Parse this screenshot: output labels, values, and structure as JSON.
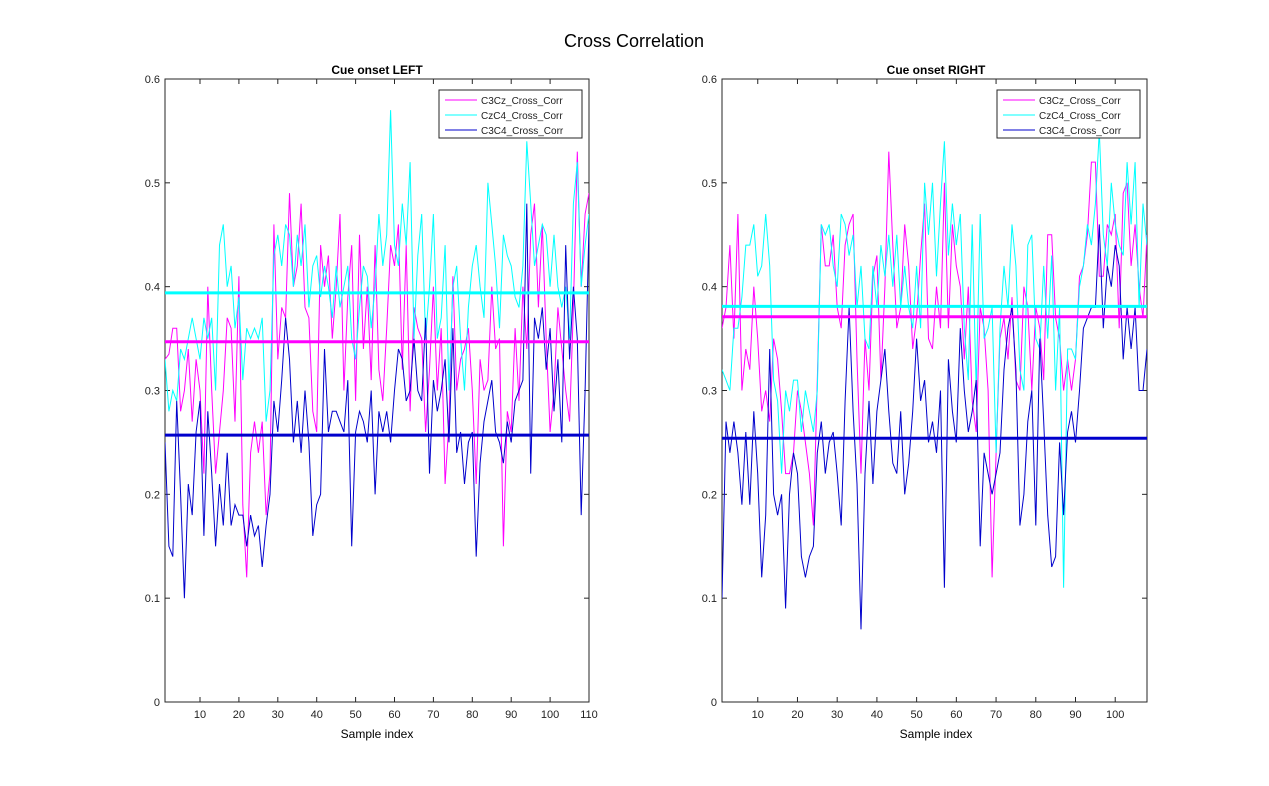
{
  "figure": {
    "suptitle": "Cross Correlation"
  },
  "chart_data": [
    {
      "type": "line",
      "title": "Cue onset LEFT",
      "xlabel": "Sample index",
      "ylabel": "",
      "xlim": [
        1,
        110
      ],
      "ylim": [
        0,
        0.6
      ],
      "xticks": [
        10,
        20,
        30,
        40,
        50,
        60,
        70,
        80,
        90,
        100,
        110
      ],
      "yticks": [
        0,
        0.1,
        0.2,
        0.3,
        0.4,
        0.5,
        0.6
      ],
      "grid": false,
      "legend": "top-right",
      "series": [
        {
          "name": "C3Cz_Cross_Corr",
          "color": "#ff00ff",
          "mean": 0.347,
          "values": [
            0.33,
            0.335,
            0.36,
            0.36,
            0.28,
            0.3,
            0.34,
            0.27,
            0.33,
            0.3,
            0.22,
            0.4,
            0.3,
            0.22,
            0.26,
            0.3,
            0.37,
            0.36,
            0.27,
            0.41,
            0.19,
            0.12,
            0.24,
            0.27,
            0.24,
            0.27,
            0.18,
            0.22,
            0.46,
            0.33,
            0.38,
            0.37,
            0.49,
            0.4,
            0.42,
            0.48,
            0.38,
            0.37,
            0.28,
            0.26,
            0.44,
            0.4,
            0.43,
            0.35,
            0.4,
            0.47,
            0.3,
            0.39,
            0.44,
            0.29,
            0.45,
            0.34,
            0.4,
            0.31,
            0.44,
            0.32,
            0.29,
            0.36,
            0.44,
            0.42,
            0.46,
            0.32,
            0.44,
            0.28,
            0.38,
            0.36,
            0.35,
            0.26,
            0.32,
            0.4,
            0.3,
            0.36,
            0.21,
            0.27,
            0.41,
            0.3,
            0.33,
            0.34,
            0.36,
            0.3,
            0.21,
            0.33,
            0.3,
            0.31,
            0.4,
            0.34,
            0.35,
            0.15,
            0.28,
            0.26,
            0.36,
            0.29,
            0.4,
            0.34,
            0.45,
            0.48,
            0.38,
            0.46,
            0.35,
            0.26,
            0.3,
            0.38,
            0.34,
            0.3,
            0.27,
            0.38,
            0.53,
            0.4,
            0.47,
            0.49
          ]
        },
        {
          "name": "CzC4_Cross_Corr",
          "color": "#00ffff",
          "mean": 0.394,
          "values": [
            0.33,
            0.28,
            0.3,
            0.29,
            0.34,
            0.33,
            0.35,
            0.37,
            0.35,
            0.33,
            0.37,
            0.35,
            0.37,
            0.3,
            0.44,
            0.46,
            0.4,
            0.42,
            0.36,
            0.39,
            0.31,
            0.36,
            0.35,
            0.36,
            0.35,
            0.37,
            0.27,
            0.3,
            0.43,
            0.45,
            0.42,
            0.46,
            0.45,
            0.4,
            0.45,
            0.42,
            0.46,
            0.38,
            0.42,
            0.43,
            0.39,
            0.42,
            0.4,
            0.37,
            0.42,
            0.38,
            0.4,
            0.42,
            0.35,
            0.33,
            0.38,
            0.42,
            0.41,
            0.36,
            0.4,
            0.47,
            0.42,
            0.45,
            0.57,
            0.44,
            0.42,
            0.48,
            0.44,
            0.52,
            0.35,
            0.43,
            0.47,
            0.35,
            0.4,
            0.47,
            0.35,
            0.37,
            0.44,
            0.3,
            0.4,
            0.42,
            0.35,
            0.3,
            0.38,
            0.42,
            0.44,
            0.4,
            0.37,
            0.5,
            0.46,
            0.42,
            0.36,
            0.45,
            0.43,
            0.42,
            0.39,
            0.38,
            0.42,
            0.54,
            0.48,
            0.42,
            0.44,
            0.46,
            0.45,
            0.4,
            0.45,
            0.4,
            0.38,
            0.4,
            0.35,
            0.48,
            0.52,
            0.4,
            0.44,
            0.47
          ]
        },
        {
          "name": "C3C4_Cross_Corr",
          "color": "#0000cc",
          "mean": 0.257,
          "values": [
            0.25,
            0.15,
            0.14,
            0.29,
            0.2,
            0.1,
            0.21,
            0.18,
            0.26,
            0.29,
            0.16,
            0.28,
            0.22,
            0.15,
            0.21,
            0.17,
            0.24,
            0.17,
            0.19,
            0.18,
            0.18,
            0.15,
            0.18,
            0.16,
            0.17,
            0.13,
            0.17,
            0.2,
            0.29,
            0.26,
            0.31,
            0.37,
            0.33,
            0.25,
            0.29,
            0.24,
            0.3,
            0.25,
            0.16,
            0.19,
            0.2,
            0.34,
            0.26,
            0.28,
            0.28,
            0.27,
            0.26,
            0.31,
            0.15,
            0.26,
            0.28,
            0.27,
            0.25,
            0.3,
            0.2,
            0.28,
            0.26,
            0.28,
            0.25,
            0.3,
            0.34,
            0.33,
            0.29,
            0.3,
            0.35,
            0.3,
            0.29,
            0.37,
            0.22,
            0.31,
            0.28,
            0.3,
            0.33,
            0.25,
            0.36,
            0.24,
            0.26,
            0.21,
            0.25,
            0.26,
            0.14,
            0.23,
            0.27,
            0.29,
            0.31,
            0.26,
            0.25,
            0.23,
            0.27,
            0.25,
            0.29,
            0.3,
            0.31,
            0.48,
            0.22,
            0.37,
            0.35,
            0.38,
            0.32,
            0.36,
            0.28,
            0.33,
            0.25,
            0.44,
            0.33,
            0.4,
            0.35,
            0.18,
            0.3,
            0.46
          ]
        }
      ]
    },
    {
      "type": "line",
      "title": "Cue onset RIGHT",
      "xlabel": "Sample index",
      "ylabel": "",
      "xlim": [
        1,
        108
      ],
      "ylim": [
        0,
        0.6
      ],
      "xticks": [
        10,
        20,
        30,
        40,
        50,
        60,
        70,
        80,
        90,
        100
      ],
      "yticks": [
        0,
        0.1,
        0.2,
        0.3,
        0.4,
        0.5,
        0.6
      ],
      "grid": false,
      "legend": "top-right",
      "series": [
        {
          "name": "C3Cz_Cross_Corr",
          "color": "#ff00ff",
          "mean": 0.371,
          "values": [
            0.36,
            0.38,
            0.44,
            0.35,
            0.47,
            0.3,
            0.34,
            0.32,
            0.4,
            0.35,
            0.28,
            0.3,
            0.27,
            0.35,
            0.33,
            0.28,
            0.22,
            0.22,
            0.24,
            0.3,
            0.28,
            0.25,
            0.22,
            0.17,
            0.31,
            0.46,
            0.42,
            0.42,
            0.45,
            0.38,
            0.36,
            0.44,
            0.46,
            0.47,
            0.33,
            0.22,
            0.35,
            0.3,
            0.41,
            0.43,
            0.31,
            0.4,
            0.53,
            0.44,
            0.36,
            0.38,
            0.46,
            0.42,
            0.34,
            0.37,
            0.43,
            0.48,
            0.35,
            0.34,
            0.4,
            0.36,
            0.5,
            0.36,
            0.46,
            0.42,
            0.4,
            0.33,
            0.4,
            0.29,
            0.26,
            0.38,
            0.36,
            0.3,
            0.12,
            0.24,
            0.35,
            0.37,
            0.33,
            0.39,
            0.31,
            0.3,
            0.4,
            0.38,
            0.3,
            0.38,
            0.36,
            0.31,
            0.45,
            0.45,
            0.37,
            0.35,
            0.3,
            0.33,
            0.3,
            0.33,
            0.41,
            0.42,
            0.45,
            0.52,
            0.52,
            0.41,
            0.41,
            0.46,
            0.45,
            0.47,
            0.36,
            0.49,
            0.5,
            0.42,
            0.46,
            0.4,
            0.37,
            0.45
          ]
        },
        {
          "name": "CzC4_Cross_Corr",
          "color": "#00ffff",
          "mean": 0.381,
          "values": [
            0.32,
            0.31,
            0.3,
            0.36,
            0.36,
            0.39,
            0.44,
            0.44,
            0.46,
            0.41,
            0.42,
            0.47,
            0.42,
            0.31,
            0.29,
            0.22,
            0.3,
            0.28,
            0.31,
            0.31,
            0.26,
            0.3,
            0.28,
            0.26,
            0.3,
            0.46,
            0.45,
            0.46,
            0.42,
            0.4,
            0.47,
            0.46,
            0.43,
            0.45,
            0.38,
            0.42,
            0.35,
            0.34,
            0.42,
            0.38,
            0.44,
            0.41,
            0.45,
            0.4,
            0.45,
            0.38,
            0.42,
            0.38,
            0.36,
            0.42,
            0.36,
            0.5,
            0.45,
            0.5,
            0.41,
            0.48,
            0.54,
            0.43,
            0.48,
            0.44,
            0.47,
            0.36,
            0.31,
            0.46,
            0.3,
            0.47,
            0.35,
            0.36,
            0.38,
            0.24,
            0.36,
            0.42,
            0.38,
            0.46,
            0.42,
            0.32,
            0.3,
            0.44,
            0.45,
            0.35,
            0.34,
            0.42,
            0.35,
            0.43,
            0.3,
            0.38,
            0.11,
            0.34,
            0.34,
            0.33,
            0.4,
            0.42,
            0.46,
            0.44,
            0.48,
            0.55,
            0.45,
            0.42,
            0.5,
            0.46,
            0.44,
            0.43,
            0.52,
            0.46,
            0.52,
            0.38,
            0.48,
            0.44
          ]
        },
        {
          "name": "C3C4_Cross_Corr",
          "color": "#0000cc",
          "mean": 0.254,
          "values": [
            0.1,
            0.27,
            0.24,
            0.27,
            0.24,
            0.19,
            0.26,
            0.19,
            0.28,
            0.22,
            0.12,
            0.18,
            0.34,
            0.2,
            0.18,
            0.2,
            0.09,
            0.2,
            0.24,
            0.22,
            0.14,
            0.12,
            0.14,
            0.15,
            0.24,
            0.27,
            0.22,
            0.25,
            0.26,
            0.22,
            0.17,
            0.29,
            0.38,
            0.28,
            0.21,
            0.07,
            0.22,
            0.29,
            0.21,
            0.28,
            0.31,
            0.34,
            0.28,
            0.23,
            0.22,
            0.28,
            0.2,
            0.23,
            0.28,
            0.35,
            0.29,
            0.31,
            0.25,
            0.27,
            0.24,
            0.3,
            0.11,
            0.33,
            0.28,
            0.25,
            0.36,
            0.3,
            0.26,
            0.28,
            0.31,
            0.15,
            0.24,
            0.22,
            0.2,
            0.22,
            0.24,
            0.32,
            0.36,
            0.38,
            0.32,
            0.17,
            0.2,
            0.27,
            0.3,
            0.17,
            0.35,
            0.27,
            0.18,
            0.13,
            0.14,
            0.25,
            0.18,
            0.26,
            0.28,
            0.25,
            0.3,
            0.36,
            0.37,
            0.38,
            0.38,
            0.46,
            0.36,
            0.42,
            0.4,
            0.44,
            0.42,
            0.33,
            0.38,
            0.34,
            0.38,
            0.3,
            0.3,
            0.34
          ]
        }
      ]
    }
  ]
}
